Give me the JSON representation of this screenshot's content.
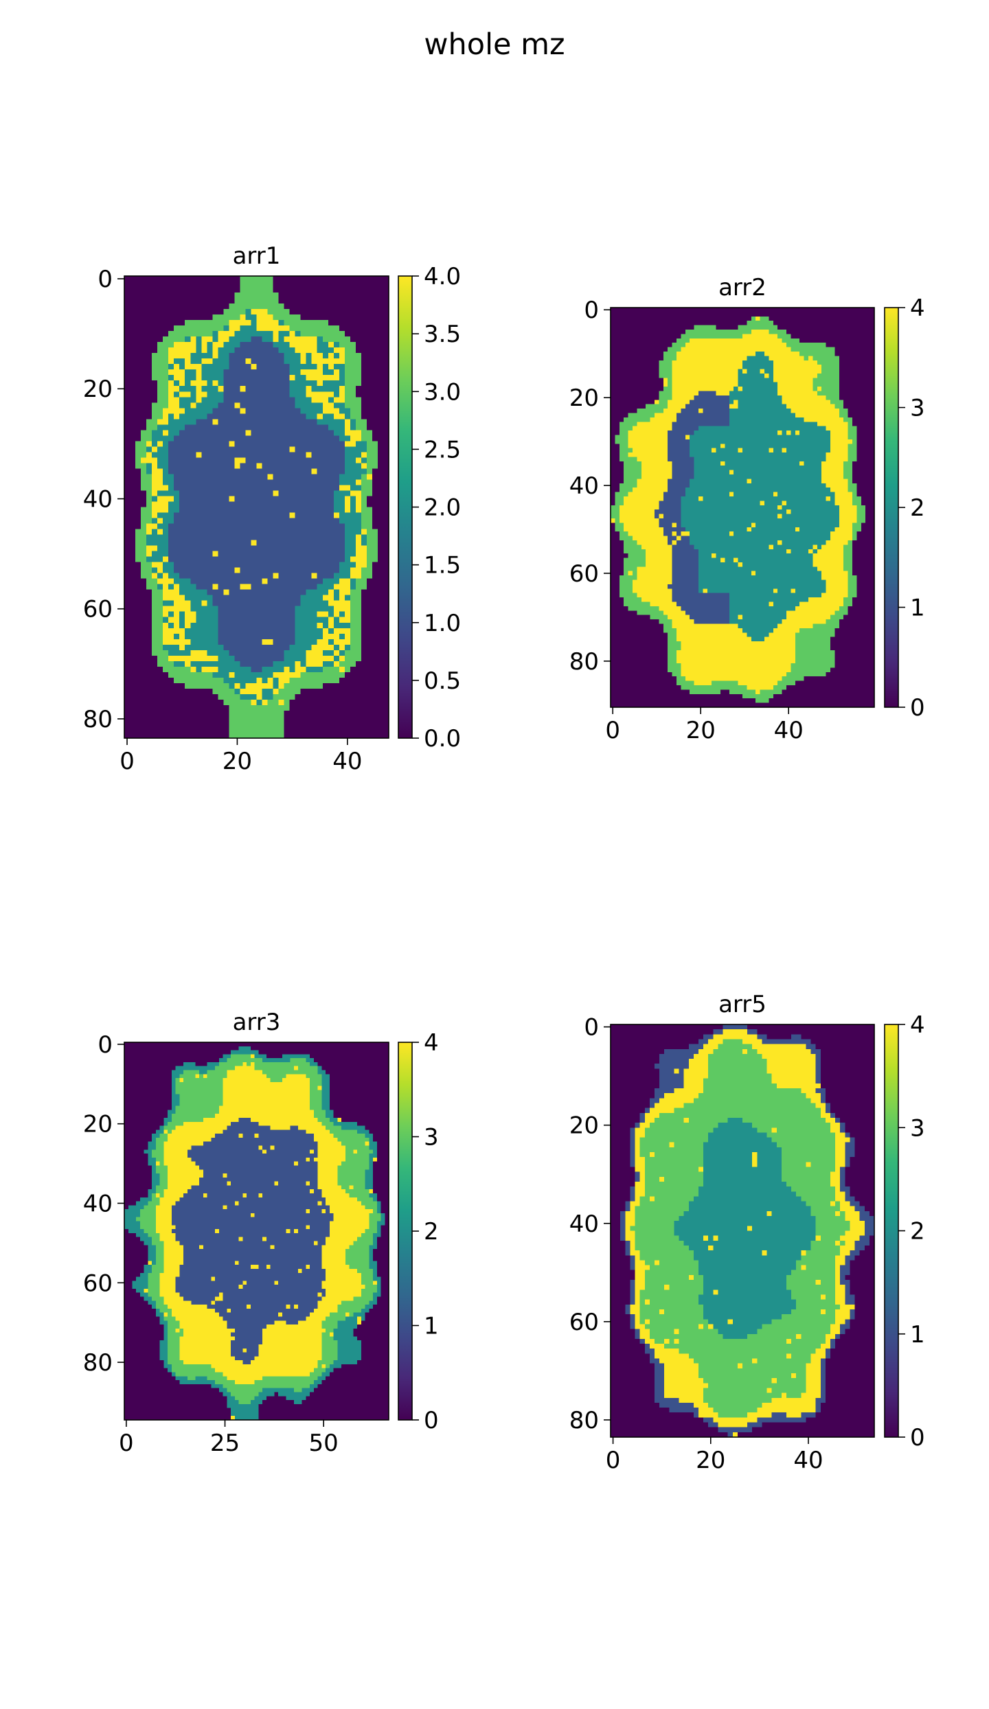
{
  "figure": {
    "title": "whole mz"
  },
  "colormap": [
    "#440154",
    "#3b528b",
    "#21918c",
    "#5ec962",
    "#fde725"
  ],
  "chart_data": [
    {
      "type": "heatmap",
      "title": "arr1",
      "shape": [
        84,
        48
      ],
      "value_range": [
        0,
        4
      ],
      "xticks": [
        "0",
        "20",
        "40"
      ],
      "xtick_values": [
        0,
        20,
        40
      ],
      "yticks": [
        "0",
        "20",
        "40",
        "60",
        "80"
      ],
      "ytick_values": [
        0,
        20,
        40,
        60,
        80
      ],
      "colorbar_ticks": [
        "0.0",
        "0.5",
        "1.0",
        "1.5",
        "2.0",
        "2.5",
        "3.0",
        "3.5",
        "4.0"
      ],
      "colorbar_values": [
        0,
        0.5,
        1,
        1.5,
        2,
        2.5,
        3,
        3.5,
        4
      ],
      "dominant_value_background": 0,
      "regions": "outer ring of 3 (green), inner band of 4 (yellow) and 2 (teal), large central blob of 1 (dark blue)"
    },
    {
      "type": "heatmap",
      "title": "arr2",
      "shape": [
        91,
        60
      ],
      "value_range": [
        0,
        4
      ],
      "xticks": [
        "0",
        "20",
        "40"
      ],
      "xtick_values": [
        0,
        20,
        40
      ],
      "yticks": [
        "0",
        "20",
        "40",
        "60",
        "80"
      ],
      "ytick_values": [
        0,
        20,
        40,
        60,
        80
      ],
      "colorbar_ticks": [
        "0",
        "1",
        "2",
        "3",
        "4"
      ],
      "colorbar_values": [
        0,
        1,
        2,
        3,
        4
      ],
      "dominant_value_background": 0,
      "regions": "outer ring of 3 (green), band of 4 (yellow), curved band of 1 (dark blue) on left, core of 2 (teal)"
    },
    {
      "type": "heatmap",
      "title": "arr3",
      "shape": [
        95,
        67
      ],
      "value_range": [
        0,
        4
      ],
      "xticks": [
        "0",
        "25",
        "50"
      ],
      "xtick_values": [
        0,
        25,
        50
      ],
      "yticks": [
        "0",
        "20",
        "40",
        "60",
        "80"
      ],
      "ytick_values": [
        0,
        20,
        40,
        60,
        80
      ],
      "colorbar_ticks": [
        "0",
        "1",
        "2",
        "3",
        "4"
      ],
      "colorbar_values": [
        0,
        1,
        2,
        3,
        4
      ],
      "dominant_value_background": 0,
      "regions": "outer edge of 2 (teal), ring of 3 (green), curved band of 4 (yellow), core of 1 (dark blue)"
    },
    {
      "type": "heatmap",
      "title": "arr5",
      "shape": [
        84,
        54
      ],
      "value_range": [
        0,
        4
      ],
      "xticks": [
        "0",
        "20",
        "40"
      ],
      "xtick_values": [
        0,
        20,
        40
      ],
      "yticks": [
        "0",
        "20",
        "40",
        "60",
        "80"
      ],
      "ytick_values": [
        0,
        20,
        40,
        60,
        80
      ],
      "colorbar_ticks": [
        "0",
        "1",
        "2",
        "3",
        "4"
      ],
      "colorbar_values": [
        0,
        1,
        2,
        3,
        4
      ],
      "dominant_value_background": 0,
      "regions": "outer edge of 1 (dark blue), rim of 4 (yellow), large area of 3 (green), core of 2 (teal)"
    }
  ]
}
